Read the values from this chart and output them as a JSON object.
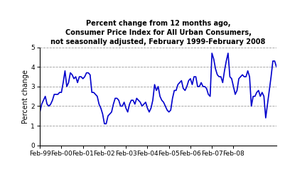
{
  "title": "Percent change from 12 months ago,\nConsumer Price Index for All Urban Consumers,\nnot seasonally adjusted, February 1999-February 2008",
  "ylabel": "Percent change",
  "ylim": [
    0,
    5
  ],
  "yticks": [
    0,
    1,
    2,
    3,
    4,
    5
  ],
  "line_color": "#0000CC",
  "line_width": 1.2,
  "background_color": "#ffffff",
  "title_fontsize": 7.0,
  "ylabel_fontsize": 7.0,
  "tick_fontsize": 6.5,
  "values": [
    1.7,
    2.1,
    2.3,
    2.5,
    2.1,
    2.0,
    2.1,
    2.3,
    2.6,
    2.6,
    2.6,
    2.7,
    2.7,
    3.2,
    3.8,
    3.0,
    3.2,
    3.7,
    3.6,
    3.4,
    3.5,
    3.2,
    3.5,
    3.5,
    3.4,
    3.5,
    3.7,
    3.7,
    3.6,
    2.7,
    2.7,
    2.6,
    2.5,
    2.1,
    1.9,
    1.6,
    1.1,
    1.1,
    1.5,
    1.6,
    1.7,
    2.1,
    2.4,
    2.4,
    2.3,
    2.0,
    2.0,
    2.2,
    1.9,
    1.7,
    2.1,
    2.3,
    2.3,
    2.1,
    2.4,
    2.3,
    2.2,
    2.0,
    2.1,
    2.2,
    1.9,
    1.7,
    1.9,
    2.3,
    3.1,
    2.8,
    3.0,
    2.5,
    2.3,
    2.2,
    2.0,
    1.8,
    1.7,
    1.8,
    2.4,
    2.8,
    2.8,
    3.1,
    3.2,
    3.3,
    2.9,
    2.8,
    3.0,
    3.3,
    3.4,
    3.1,
    3.5,
    3.5,
    3.0,
    3.0,
    3.2,
    3.0,
    3.0,
    2.9,
    2.6,
    2.5,
    4.7,
    4.4,
    3.9,
    3.6,
    3.5,
    3.5,
    3.2,
    3.8,
    4.3,
    4.7,
    3.5,
    3.4,
    3.0,
    2.6,
    2.8,
    3.4,
    3.5,
    3.6,
    3.5,
    3.5,
    3.8,
    3.5,
    2.0,
    2.5,
    2.5,
    2.7,
    2.8,
    2.5,
    2.7,
    2.5,
    1.4,
    2.1,
    2.8,
    3.5,
    4.3,
    4.3,
    4.0
  ],
  "x_tick_labels": [
    "Feb-99",
    "Feb-00",
    "Feb-01",
    "Feb-02",
    "Feb-03",
    "Feb-04",
    "Feb-05",
    "Feb-06",
    "Feb-07",
    "Feb-08"
  ],
  "x_tick_positions": [
    0,
    12,
    24,
    36,
    48,
    60,
    72,
    84,
    96,
    108
  ]
}
